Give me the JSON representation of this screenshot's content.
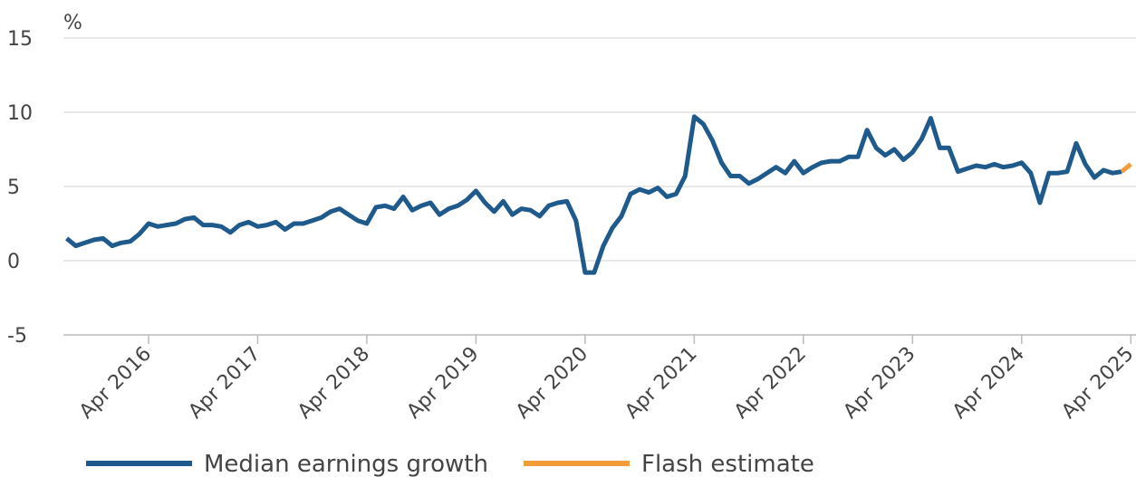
{
  "chart_data": {
    "type": "line",
    "y_label": "%",
    "categories": [
      null,
      null,
      null,
      null,
      null,
      null,
      null,
      null,
      null,
      "Apr 2016",
      null,
      null,
      null,
      null,
      null,
      null,
      null,
      null,
      null,
      null,
      null,
      "Apr 2017",
      null,
      null,
      null,
      null,
      null,
      null,
      null,
      null,
      null,
      null,
      null,
      "Apr 2018",
      null,
      null,
      null,
      null,
      null,
      null,
      null,
      null,
      null,
      null,
      null,
      "Apr 2019",
      null,
      null,
      null,
      null,
      null,
      null,
      null,
      null,
      null,
      null,
      null,
      "Apr 2020",
      null,
      null,
      null,
      null,
      null,
      null,
      null,
      null,
      null,
      null,
      null,
      "Apr 2021",
      null,
      null,
      null,
      null,
      null,
      null,
      null,
      null,
      null,
      null,
      null,
      "Apr 2022",
      null,
      null,
      null,
      null,
      null,
      null,
      null,
      null,
      null,
      null,
      null,
      "Apr 2023",
      null,
      null,
      null,
      null,
      null,
      null,
      null,
      null,
      null,
      null,
      null,
      "Apr 2024",
      null,
      null,
      null,
      null,
      null,
      null,
      null,
      null,
      null,
      null,
      null,
      "Apr 2025"
    ],
    "series": [
      {
        "name": "Median earnings growth",
        "color": "#1f5a8c",
        "values": [
          1.5,
          1.0,
          1.2,
          1.4,
          1.5,
          1.0,
          1.2,
          1.3,
          1.8,
          2.5,
          2.3,
          2.4,
          2.5,
          2.8,
          2.9,
          2.4,
          2.4,
          2.3,
          1.9,
          2.4,
          2.6,
          2.3,
          2.4,
          2.6,
          2.1,
          2.5,
          2.5,
          2.7,
          2.9,
          3.3,
          3.5,
          3.1,
          2.7,
          2.5,
          3.6,
          3.7,
          3.5,
          4.3,
          3.4,
          3.7,
          3.9,
          3.1,
          3.5,
          3.7,
          4.1,
          4.7,
          3.9,
          3.3,
          4.0,
          3.1,
          3.5,
          3.4,
          3.0,
          3.7,
          3.9,
          4.0,
          2.7,
          -0.8,
          -0.8,
          1.0,
          2.2,
          3.0,
          4.5,
          4.8,
          4.6,
          4.9,
          4.3,
          4.5,
          5.7,
          9.7,
          9.2,
          8.1,
          6.6,
          5.7,
          5.7,
          5.2,
          5.5,
          5.9,
          6.3,
          5.9,
          6.7,
          5.9,
          6.3,
          6.6,
          6.7,
          6.7,
          7.0,
          7.0,
          8.8,
          7.6,
          7.1,
          7.5,
          6.8,
          7.3,
          8.2,
          9.6,
          7.6,
          7.6,
          6.0,
          6.2,
          6.4,
          6.3,
          6.5,
          6.3,
          6.4,
          6.6,
          5.9,
          3.9,
          5.9,
          5.9,
          6.0,
          7.9,
          6.5,
          5.6,
          6.1,
          5.9,
          6.0,
          null
        ]
      },
      {
        "name": "Flash estimate",
        "color": "#f39c3a",
        "values": [
          null,
          null,
          null,
          null,
          null,
          null,
          null,
          null,
          null,
          null,
          null,
          null,
          null,
          null,
          null,
          null,
          null,
          null,
          null,
          null,
          null,
          null,
          null,
          null,
          null,
          null,
          null,
          null,
          null,
          null,
          null,
          null,
          null,
          null,
          null,
          null,
          null,
          null,
          null,
          null,
          null,
          null,
          null,
          null,
          null,
          null,
          null,
          null,
          null,
          null,
          null,
          null,
          null,
          null,
          null,
          null,
          null,
          null,
          null,
          null,
          null,
          null,
          null,
          null,
          null,
          null,
          null,
          null,
          null,
          null,
          null,
          null,
          null,
          null,
          null,
          null,
          null,
          null,
          null,
          null,
          null,
          null,
          null,
          null,
          null,
          null,
          null,
          null,
          null,
          null,
          null,
          null,
          null,
          null,
          null,
          null,
          null,
          null,
          null,
          null,
          null,
          null,
          null,
          null,
          null,
          null,
          null,
          null,
          null,
          null,
          null,
          null,
          null,
          null,
          null,
          null,
          6.0,
          6.5
        ]
      }
    ],
    "ylim": [
      -5,
      15
    ],
    "yticks": [
      -5,
      0,
      5,
      10,
      15
    ],
    "grid": true,
    "legend": "bottom"
  }
}
